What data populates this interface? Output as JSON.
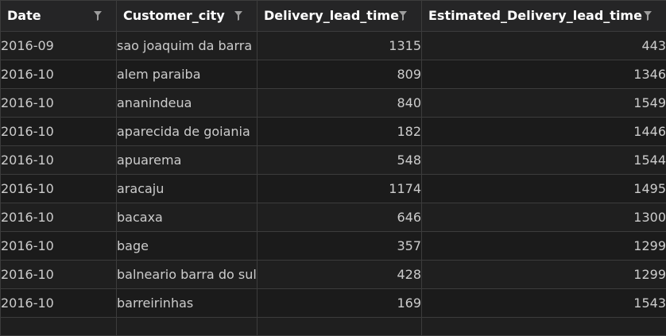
{
  "columns": [
    {
      "label": "Date",
      "icon": "filter-icon"
    },
    {
      "label": "Customer_city",
      "icon": "filter-icon"
    },
    {
      "label": "Delivery_lead_time",
      "icon": "filter-icon"
    },
    {
      "label": "Estimated_Delivery_lead_time",
      "icon": "filter-icon"
    }
  ],
  "rows": [
    {
      "date": "2016-09",
      "city": "sao joaquim da barra",
      "delivery": "1315",
      "estimated": "443"
    },
    {
      "date": "2016-10",
      "city": "alem paraiba",
      "delivery": "809",
      "estimated": "1346"
    },
    {
      "date": "2016-10",
      "city": "ananindeua",
      "delivery": "840",
      "estimated": "1549"
    },
    {
      "date": "2016-10",
      "city": "aparecida de goiania",
      "delivery": "182",
      "estimated": "1446"
    },
    {
      "date": "2016-10",
      "city": "apuarema",
      "delivery": "548",
      "estimated": "1544"
    },
    {
      "date": "2016-10",
      "city": "aracaju",
      "delivery": "1174",
      "estimated": "1495"
    },
    {
      "date": "2016-10",
      "city": "bacaxa",
      "delivery": "646",
      "estimated": "1300"
    },
    {
      "date": "2016-10",
      "city": "bage",
      "delivery": "357",
      "estimated": "1299"
    },
    {
      "date": "2016-10",
      "city": "balneario barra do sul",
      "delivery": "428",
      "estimated": "1299"
    },
    {
      "date": "2016-10",
      "city": "barreirinhas",
      "delivery": "169",
      "estimated": "1543"
    }
  ],
  "colors": {
    "background": "#1e1e1e",
    "header_bg": "#252526",
    "grid_line": "#3c3c3c",
    "text": "#cccccc",
    "header_text": "#ffffff",
    "icon": "#9d9d9d"
  }
}
